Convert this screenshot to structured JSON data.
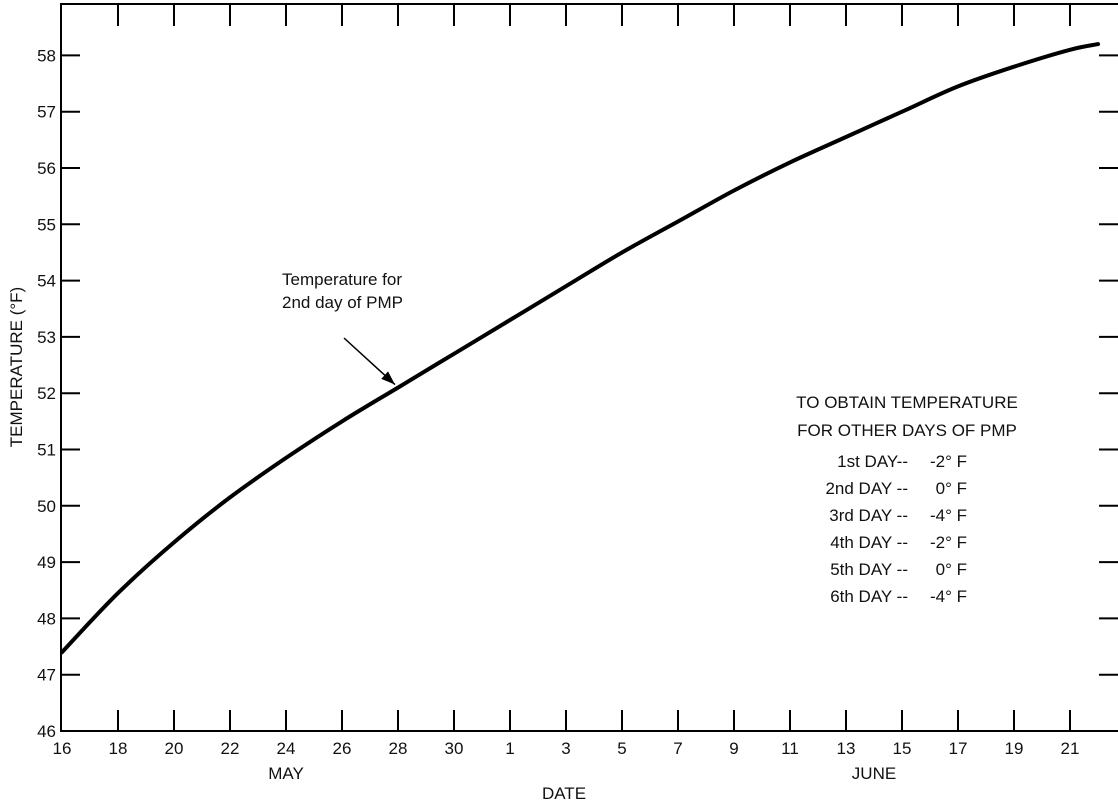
{
  "chart_data": {
    "type": "line",
    "xlabel": "DATE",
    "ylabel": "TEMPERATURE (°F)",
    "ylim": [
      46,
      58.5
    ],
    "y_ticks": [
      46,
      47,
      48,
      49,
      50,
      51,
      52,
      53,
      54,
      55,
      56,
      57,
      58
    ],
    "x_range": [
      "May 16",
      "June 22"
    ],
    "x_ticks": [
      {
        "label": "16",
        "date": "May 16"
      },
      {
        "label": "18",
        "date": "May 18"
      },
      {
        "label": "20",
        "date": "May 20"
      },
      {
        "label": "22",
        "date": "May 22"
      },
      {
        "label": "24",
        "date": "May 24"
      },
      {
        "label": "26",
        "date": "May 26"
      },
      {
        "label": "28",
        "date": "May 28"
      },
      {
        "label": "30",
        "date": "May 30"
      },
      {
        "label": "1",
        "date": "June 1"
      },
      {
        "label": "3",
        "date": "June 3"
      },
      {
        "label": "5",
        "date": "June 5"
      },
      {
        "label": "7",
        "date": "June 7"
      },
      {
        "label": "9",
        "date": "June 9"
      },
      {
        "label": "11",
        "date": "June 11"
      },
      {
        "label": "13",
        "date": "June 13"
      },
      {
        "label": "15",
        "date": "June 15"
      },
      {
        "label": "17",
        "date": "June 17"
      },
      {
        "label": "19",
        "date": "June 19"
      },
      {
        "label": "21",
        "date": "June 21"
      }
    ],
    "months": [
      {
        "label": "MAY",
        "date": "May 24"
      },
      {
        "label": "JUNE",
        "date": "June 14"
      }
    ],
    "grid": false,
    "series": [
      {
        "x": [
          "May 16",
          "May 18",
          "May 20",
          "May 22",
          "May 24",
          "May 26",
          "May 28",
          "May 30",
          "June 1",
          "June 3",
          "June 5",
          "June 7",
          "June 9",
          "June 11",
          "June 13",
          "June 15",
          "June 17",
          "June 19",
          "June 21",
          "June 22"
        ],
        "y": [
          47.4,
          48.45,
          49.35,
          50.15,
          50.85,
          51.5,
          52.1,
          52.7,
          53.3,
          53.9,
          54.5,
          55.05,
          55.6,
          56.1,
          56.55,
          57.0,
          57.45,
          57.8,
          58.1,
          58.2
        ]
      }
    ],
    "annotations": [
      {
        "lines": [
          "Temperature for",
          "2nd day of PMP"
        ],
        "points_to": {
          "x": "May 28",
          "y": 52.1
        }
      }
    ],
    "note": {
      "title_lines": [
        "TO OBTAIN TEMPERATURE",
        "FOR OTHER DAYS OF PMP"
      ],
      "rows": [
        {
          "label": "1st DAY--",
          "value": "-2° F"
        },
        {
          "label": "2nd DAY --",
          "value": "0° F"
        },
        {
          "label": "3rd DAY --",
          "value": "-4° F"
        },
        {
          "label": "4th DAY --",
          "value": "-2° F"
        },
        {
          "label": "5th DAY --",
          "value": "0° F"
        },
        {
          "label": "6th DAY --",
          "value": "-4° F"
        }
      ]
    }
  }
}
